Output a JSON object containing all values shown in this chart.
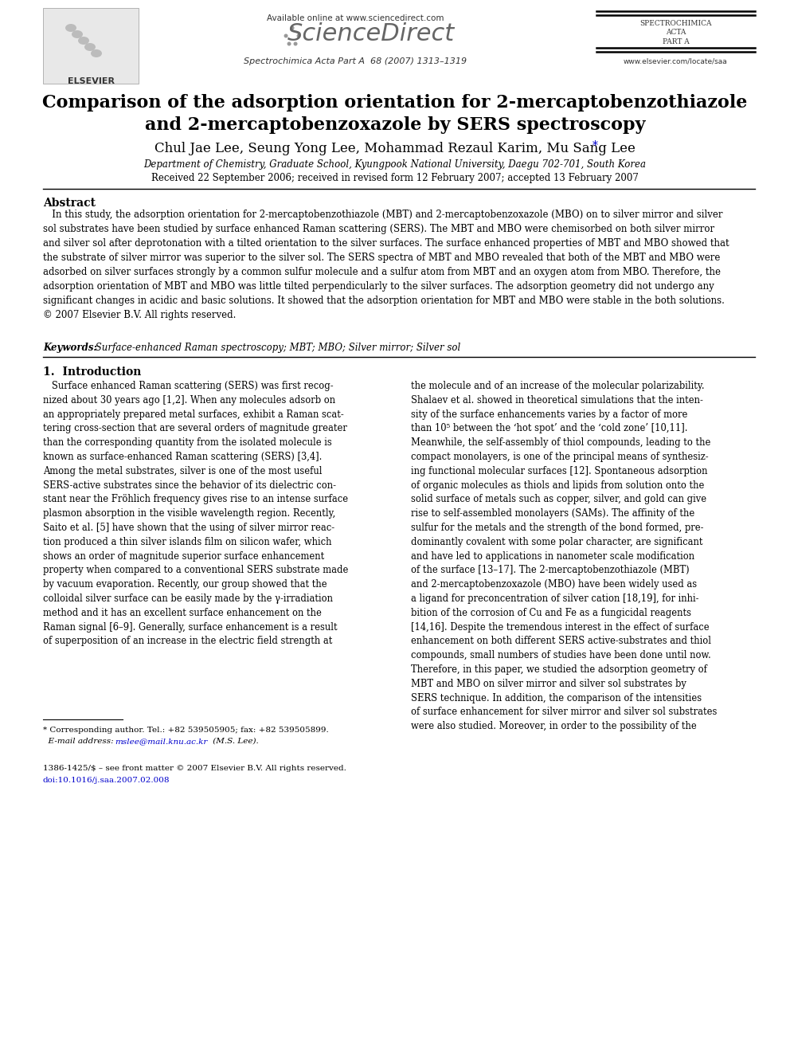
{
  "page_width": 9.92,
  "page_height": 13.23,
  "dpi": 100,
  "bg_color": "#ffffff",
  "header": {
    "available_online_text": "Available online at www.sciencedirect.com",
    "sciencedirect_text": "ScienceDirect",
    "journal_info": "Spectrochimica Acta Part A  68 (2007) 1313–1319",
    "spectrochimica_lines": [
      "SPECTROCHIMICA",
      "ACTA",
      "",
      "PART A"
    ],
    "website": "www.elsevier.com/locate/saa",
    "elsevier_text": "ELSEVIER"
  },
  "title_line1": "Comparison of the adsorption orientation for 2-mercaptobenzothiazole",
  "title_line2": "and 2-mercaptobenzoxazole by SERS spectroscopy",
  "authors_text": "Chul Jae Lee, Seung Yong Lee, Mohammad Rezaul Karim, Mu Sang Lee",
  "affiliation": "Department of Chemistry, Graduate School, Kyungpook National University, Daegu 702-701, South Korea",
  "received": "Received 22 September 2006; received in revised form 12 February 2007; accepted 13 February 2007",
  "abstract_title": "Abstract",
  "abstract_text": "   In this study, the adsorption orientation for 2-mercaptobenzothiazole (MBT) and 2-mercaptobenzoxazole (MBO) on to silver mirror and silver\nsol substrates have been studied by surface enhanced Raman scattering (SERS). The MBT and MBO were chemisorbed on both silver mirror\nand silver sol after deprotonation with a tilted orientation to the silver surfaces. The surface enhanced properties of MBT and MBO showed that\nthe substrate of silver mirror was superior to the silver sol. The SERS spectra of MBT and MBO revealed that both of the MBT and MBO were\nadsorbed on silver surfaces strongly by a common sulfur molecule and a sulfur atom from MBT and an oxygen atom from MBO. Therefore, the\nadsorption orientation of MBT and MBO was little tilted perpendicularly to the silver surfaces. The adsorption geometry did not undergo any\nsignificant changes in acidic and basic solutions. It showed that the adsorption orientation for MBT and MBO were stable in the both solutions.\n© 2007 Elsevier B.V. All rights reserved.",
  "keywords_label": "Keywords: ",
  "keywords_text": " Surface-enhanced Raman spectroscopy; MBT; MBO; Silver mirror; Silver sol",
  "section1_title": "1.  Introduction",
  "col1_intro_text": "   Surface enhanced Raman scattering (SERS) was first recog-\nnized about 30 years ago [1,2]. When any molecules adsorb on\nan appropriately prepared metal surfaces, exhibit a Raman scat-\ntering cross-section that are several orders of magnitude greater\nthan the corresponding quantity from the isolated molecule is\nknown as surface-enhanced Raman scattering (SERS) [3,4].\nAmong the metal substrates, silver is one of the most useful\nSERS-active substrates since the behavior of its dielectric con-\nstant near the Fröhlich frequency gives rise to an intense surface\nplasmon absorption in the visible wavelength region. Recently,\nSaito et al. [5] have shown that the using of silver mirror reac-\ntion produced a thin silver islands film on silicon wafer, which\nshows an order of magnitude superior surface enhancement\nproperty when compared to a conventional SERS substrate made\nby vacuum evaporation. Recently, our group showed that the\ncolloidal silver surface can be easily made by the γ-irradiation\nmethod and it has an excellent surface enhancement on the\nRaman signal [6–9]. Generally, surface enhancement is a result\nof superposition of an increase in the electric field strength at",
  "col2_intro_text": "the molecule and of an increase of the molecular polarizability.\nShalaev et al. showed in theoretical simulations that the inten-\nsity of the surface enhancements varies by a factor of more\nthan 10⁵ between the ‘hot spot’ and the ‘cold zone’ [10,11].\nMeanwhile, the self-assembly of thiol compounds, leading to the\ncompact monolayers, is one of the principal means of synthesiz-\ning functional molecular surfaces [12]. Spontaneous adsorption\nof organic molecules as thiols and lipids from solution onto the\nsolid surface of metals such as copper, silver, and gold can give\nrise to self-assembled monolayers (SAMs). The affinity of the\nsulfur for the metals and the strength of the bond formed, pre-\ndominantly covalent with some polar character, are significant\nand have led to applications in nanometer scale modification\nof the surface [13–17]. The 2-mercaptobenzothiazole (MBT)\nand 2-mercaptobenzoxazole (MBO) have been widely used as\na ligand for preconcentration of silver cation [18,19], for inhi-\nbition of the corrosion of Cu and Fe as a fungicidal reagents\n[14,16]. Despite the tremendous interest in the effect of surface\nenhancement on both different SERS active-substrates and thiol\ncompounds, small numbers of studies have been done until now.\nTherefore, in this paper, we studied the adsorption geometry of\nMBT and MBO on silver mirror and silver sol substrates by\nSERS technique. In addition, the comparison of the intensities\nof surface enhancement for silver mirror and silver sol substrates\nwere also studied. Moreover, in order to the possibility of the",
  "footnote_author": "* Corresponding author. Tel.: +82 539505905; fax: +82 539505899.",
  "footnote_email_pre": "  E-mail address: ",
  "footnote_email": "mslee@mail.knu.ac.kr",
  "footnote_email_post": " (M.S. Lee).",
  "footer_line1": "1386-1425/$ – see front matter © 2007 Elsevier B.V. All rights reserved.",
  "footer_line2": "doi:10.1016/j.saa.2007.02.008",
  "colors": {
    "black": "#000000",
    "blue": "#0000cc",
    "gray_text": "#444444",
    "light_gray": "#888888",
    "divider": "#000000"
  }
}
